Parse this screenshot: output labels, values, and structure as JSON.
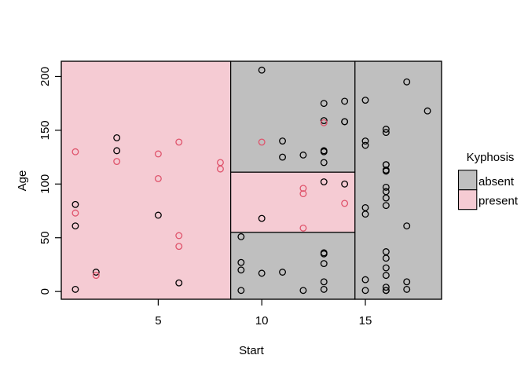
{
  "chart_data": {
    "type": "scatter",
    "title": "",
    "xlabel": "Start",
    "ylabel": "Age",
    "xlim": [
      0.32,
      18.68
    ],
    "ylim": [
      -7.2,
      214.2
    ],
    "x_ticks": [
      5,
      10,
      15
    ],
    "y_ticks": [
      0,
      50,
      100,
      150,
      200
    ],
    "grid": false,
    "point_style": "open-circle",
    "colors": {
      "absent_fill": "#BFBFBF",
      "present_fill": "#F5CBD3",
      "absent_point": "#000000",
      "present_point": "#DF536B",
      "frame": "#000000",
      "background": "#FFFFFF"
    },
    "partition_regions": [
      {
        "class": "present",
        "x0": 0.32,
        "x1": 8.5,
        "y0": -7.2,
        "y1": 214.2
      },
      {
        "class": "absent",
        "x0": 8.5,
        "x1": 14.5,
        "y0": 111,
        "y1": 214.2
      },
      {
        "class": "present",
        "x0": 8.5,
        "x1": 14.5,
        "y0": 55,
        "y1": 111
      },
      {
        "class": "absent",
        "x0": 8.5,
        "x1": 14.5,
        "y0": -7.2,
        "y1": 55
      },
      {
        "class": "absent",
        "x0": 14.5,
        "x1": 18.68,
        "y0": -7.2,
        "y1": 214.2
      }
    ],
    "legend": {
      "title": "Kyphosis",
      "position": "right",
      "entries": [
        {
          "label": "absent",
          "color": "#BFBFBF"
        },
        {
          "label": "present",
          "color": "#F5CBD3"
        }
      ]
    },
    "series": [
      {
        "name": "absent",
        "points": [
          [
            5,
            71
          ],
          [
            14,
            158
          ],
          [
            1,
            2
          ],
          [
            15,
            1
          ],
          [
            16,
            1
          ],
          [
            17,
            61
          ],
          [
            16,
            37
          ],
          [
            16,
            113
          ],
          [
            16,
            148
          ],
          [
            2,
            18
          ],
          [
            12,
            1
          ],
          [
            18,
            168
          ],
          [
            16,
            1
          ],
          [
            15,
            78
          ],
          [
            13,
            175
          ],
          [
            16,
            80
          ],
          [
            9,
            27
          ],
          [
            16,
            22
          ],
          [
            3,
            131
          ],
          [
            13,
            9
          ],
          [
            6,
            8
          ],
          [
            14,
            100
          ],
          [
            16,
            4
          ],
          [
            16,
            151
          ],
          [
            16,
            31
          ],
          [
            11,
            125
          ],
          [
            13,
            130
          ],
          [
            16,
            112
          ],
          [
            11,
            140
          ],
          [
            16,
            93
          ],
          [
            9,
            1
          ],
          [
            9,
            20
          ],
          [
            13,
            35
          ],
          [
            3,
            143
          ],
          [
            1,
            61
          ],
          [
            16,
            97
          ],
          [
            15,
            136
          ],
          [
            13,
            131
          ],
          [
            14,
            177
          ],
          [
            10,
            68
          ],
          [
            17,
            9
          ],
          [
            17,
            2
          ],
          [
            15,
            140
          ],
          [
            15,
            72
          ],
          [
            13,
            2
          ],
          [
            9,
            51
          ],
          [
            13,
            102
          ],
          [
            1,
            81
          ],
          [
            16,
            118
          ],
          [
            16,
            118
          ],
          [
            10,
            17
          ],
          [
            17,
            195
          ],
          [
            13,
            159
          ],
          [
            11,
            18
          ],
          [
            16,
            15
          ],
          [
            14,
            158
          ],
          [
            12,
            127
          ],
          [
            16,
            87
          ],
          [
            10,
            206
          ],
          [
            15,
            11
          ],
          [
            15,
            178
          ],
          [
            13,
            26
          ],
          [
            13,
            120
          ],
          [
            13,
            36
          ]
        ]
      },
      {
        "name": "present",
        "points": [
          [
            5,
            128
          ],
          [
            12,
            59
          ],
          [
            14,
            82
          ],
          [
            5,
            105
          ],
          [
            12,
            96
          ],
          [
            2,
            15
          ],
          [
            6,
            52
          ],
          [
            12,
            91
          ],
          [
            1,
            73
          ],
          [
            10,
            139
          ],
          [
            3,
            121
          ],
          [
            6,
            139
          ],
          [
            8,
            120
          ],
          [
            1,
            130
          ],
          [
            8,
            114
          ],
          [
            13,
            157
          ],
          [
            6,
            42
          ]
        ]
      }
    ]
  }
}
